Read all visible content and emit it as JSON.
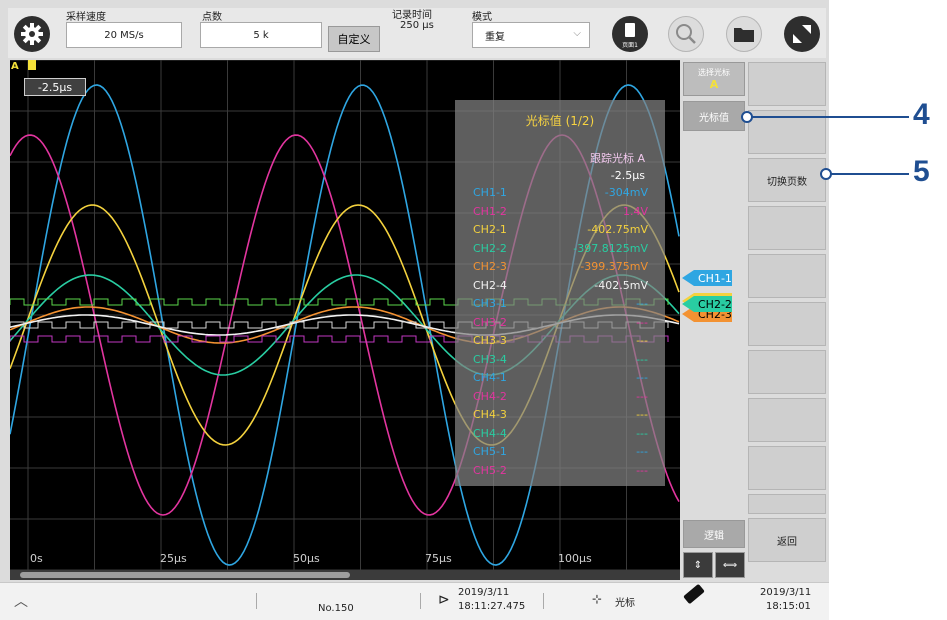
{
  "top": {
    "sample_rate_label": "采样速度",
    "sample_rate_value": "20 MS/s",
    "points_label": "点数",
    "points_value": "5 k",
    "custom_label": "自定义",
    "record_time_label": "记录时间",
    "record_time_value": "250 μs",
    "mode_label": "模式",
    "mode_value": "重复",
    "page_label": "页面1"
  },
  "screen": {
    "cursor_marker": "A",
    "cursor_time": "-2.5μs",
    "x_ticks": [
      "0s",
      "25μs",
      "50μs",
      "75μs",
      "100μs"
    ]
  },
  "overlay": {
    "title": "光标值 (1/2)",
    "header": "跟踪光标 A",
    "time": "-2.5μs",
    "rows": [
      {
        "name": "CH1-1",
        "value": "-304mV",
        "color": "#2fa6e2"
      },
      {
        "name": "CH1-2",
        "value": "1.4V",
        "color": "#e2359f"
      },
      {
        "name": "CH2-1",
        "value": "-402.75mV",
        "color": "#f4d23e"
      },
      {
        "name": "CH2-2",
        "value": "-397.8125mV",
        "color": "#29cda2"
      },
      {
        "name": "CH2-3",
        "value": "-399.375mV",
        "color": "#f39232"
      },
      {
        "name": "CH2-4",
        "value": "-402.5mV",
        "color": "#f2f2f2"
      },
      {
        "name": "CH3-1",
        "value": "---",
        "color": "#2fa6e2"
      },
      {
        "name": "CH3-2",
        "value": "---",
        "color": "#e2359f"
      },
      {
        "name": "CH3-3",
        "value": "---",
        "color": "#f4d23e"
      },
      {
        "name": "CH3-4",
        "value": "---",
        "color": "#29cda2"
      },
      {
        "name": "CH4-1",
        "value": "---",
        "color": "#2fa6e2"
      },
      {
        "name": "CH4-2",
        "value": "---",
        "color": "#e2359f"
      },
      {
        "name": "CH4-3",
        "value": "---",
        "color": "#f4d23e"
      },
      {
        "name": "CH4-4",
        "value": "---",
        "color": "#29cda2"
      },
      {
        "name": "CH5-1",
        "value": "---",
        "color": "#2fa6e2"
      },
      {
        "name": "CH5-2",
        "value": "---",
        "color": "#e2359f"
      }
    ]
  },
  "channel_tags": [
    {
      "label": "CH1-1",
      "bg": "#2fa6e2",
      "fg": "#ffffff"
    },
    {
      "label": "CH2-1",
      "bg": "#f4d23e",
      "fg": "#000000"
    },
    {
      "label": "CH2-2",
      "bg": "#29cda2",
      "fg": "#000000"
    },
    {
      "label": "CH2-3",
      "bg": "#f39232",
      "fg": "#000000"
    }
  ],
  "right_panel": {
    "select_cursor_label": "选择光标",
    "select_cursor_value": "A",
    "cursor_value_button": "光标值",
    "switch_page_button": "切换页数",
    "edit_button": "逻辑",
    "back_button": "返回"
  },
  "status_bar": {
    "record_no": "No.150",
    "trigger_date": "2019/3/11",
    "trigger_time": "18:11:27.475",
    "cursor_label": "光标",
    "clock_date": "2019/3/11",
    "clock_time": "18:15:01"
  },
  "callouts": [
    "4",
    "5"
  ]
}
